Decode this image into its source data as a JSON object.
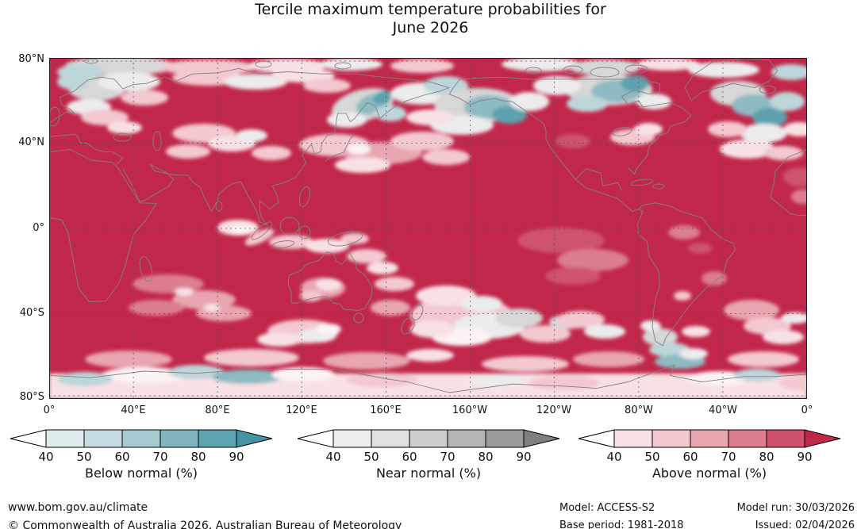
{
  "title": {
    "line1": "Tercile maximum temperature probabilities for",
    "line2": "June 2026"
  },
  "map": {
    "lat_labels": [
      "80°N",
      "40°N",
      "0°",
      "40°S",
      "80°S"
    ],
    "lon_labels": [
      "0°",
      "40°E",
      "80°E",
      "120°E",
      "160°E",
      "160°W",
      "120°W",
      "80°W",
      "40°W",
      "0°"
    ]
  },
  "legends": [
    {
      "label": "Below normal (%)",
      "ticks": [
        40,
        50,
        60,
        70,
        80,
        90
      ],
      "tip_color": "#ffffff",
      "colors": [
        "#e0ebed",
        "#c6dbdf",
        "#a5cad0",
        "#81b6c0",
        "#5da3af",
        "#4493a3"
      ]
    },
    {
      "label": "Near normal (%)",
      "ticks": [
        40,
        50,
        60,
        70,
        80,
        90
      ],
      "tip_color": "#ffffff",
      "colors": [
        "#efefef",
        "#e0e0e0",
        "#cdcdcd",
        "#b5b5b5",
        "#9c9c9c",
        "#7f7f7f"
      ]
    },
    {
      "label": "Above normal (%)",
      "ticks": [
        40,
        50,
        60,
        70,
        80,
        90
      ],
      "tip_color": "#ffffff",
      "colors": [
        "#f8e1e5",
        "#f3c8cf",
        "#e9a5b0",
        "#dc7d90",
        "#cf526d",
        "#c1274a"
      ]
    }
  ],
  "footer": {
    "website": "www.bom.gov.au/climate",
    "copyright": "© Commonwealth of Australia 2026, Australian Bureau of Meteorology",
    "model": "Model: ACCESS-S2",
    "base_period": "Base period: 1981-2018",
    "model_run": "Model run: 30/03/2026",
    "issued": "Issued: 02/04/2026"
  }
}
